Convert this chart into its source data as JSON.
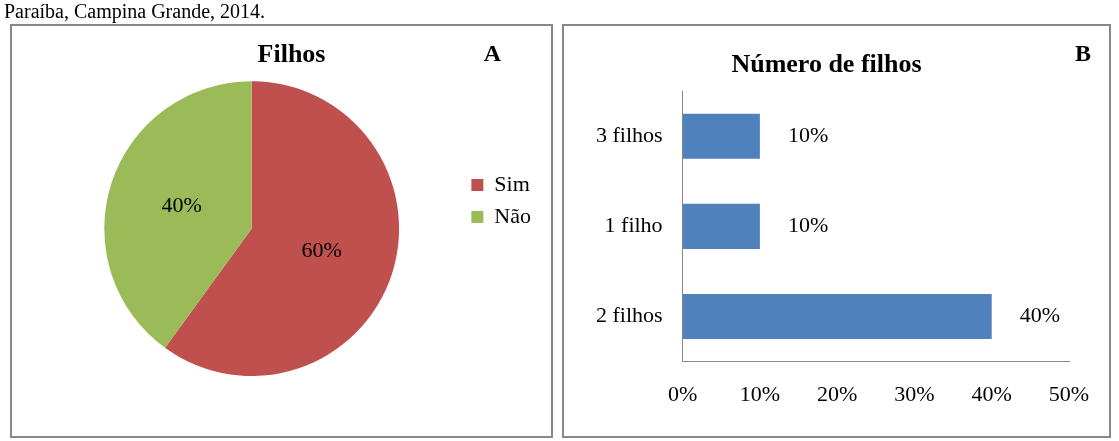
{
  "chart_data": [
    {
      "type": "pie",
      "title": "Filhos",
      "categories": [
        "Sim",
        "Não"
      ],
      "values": [
        60,
        40
      ],
      "colors": [
        "#c0504d",
        "#9bbb59"
      ],
      "value_labels": [
        "60%",
        "40%"
      ],
      "legend": "right",
      "annotations": [
        "A",
        "Paraíba, Campina Grande, 2014."
      ]
    },
    {
      "type": "bar",
      "orientation": "horizontal",
      "title": "Número de filhos",
      "categories": [
        "3 filhos",
        "1 filho",
        "2 filhos"
      ],
      "values": [
        10,
        10,
        40
      ],
      "color": "#4f81bd",
      "value_labels": [
        "10%",
        "10%",
        "40%"
      ],
      "xlim": [
        0,
        50
      ],
      "xticks": [
        {
          "value": 0,
          "label": "0%"
        },
        {
          "value": 10,
          "label": "10%"
        },
        {
          "value": 20,
          "label": "20%"
        },
        {
          "value": 30,
          "label": "30%"
        },
        {
          "value": 40,
          "label": "40%"
        },
        {
          "value": 50,
          "label": "50%"
        }
      ],
      "grid": false,
      "legend": false,
      "annotations": [
        "B"
      ]
    }
  ]
}
